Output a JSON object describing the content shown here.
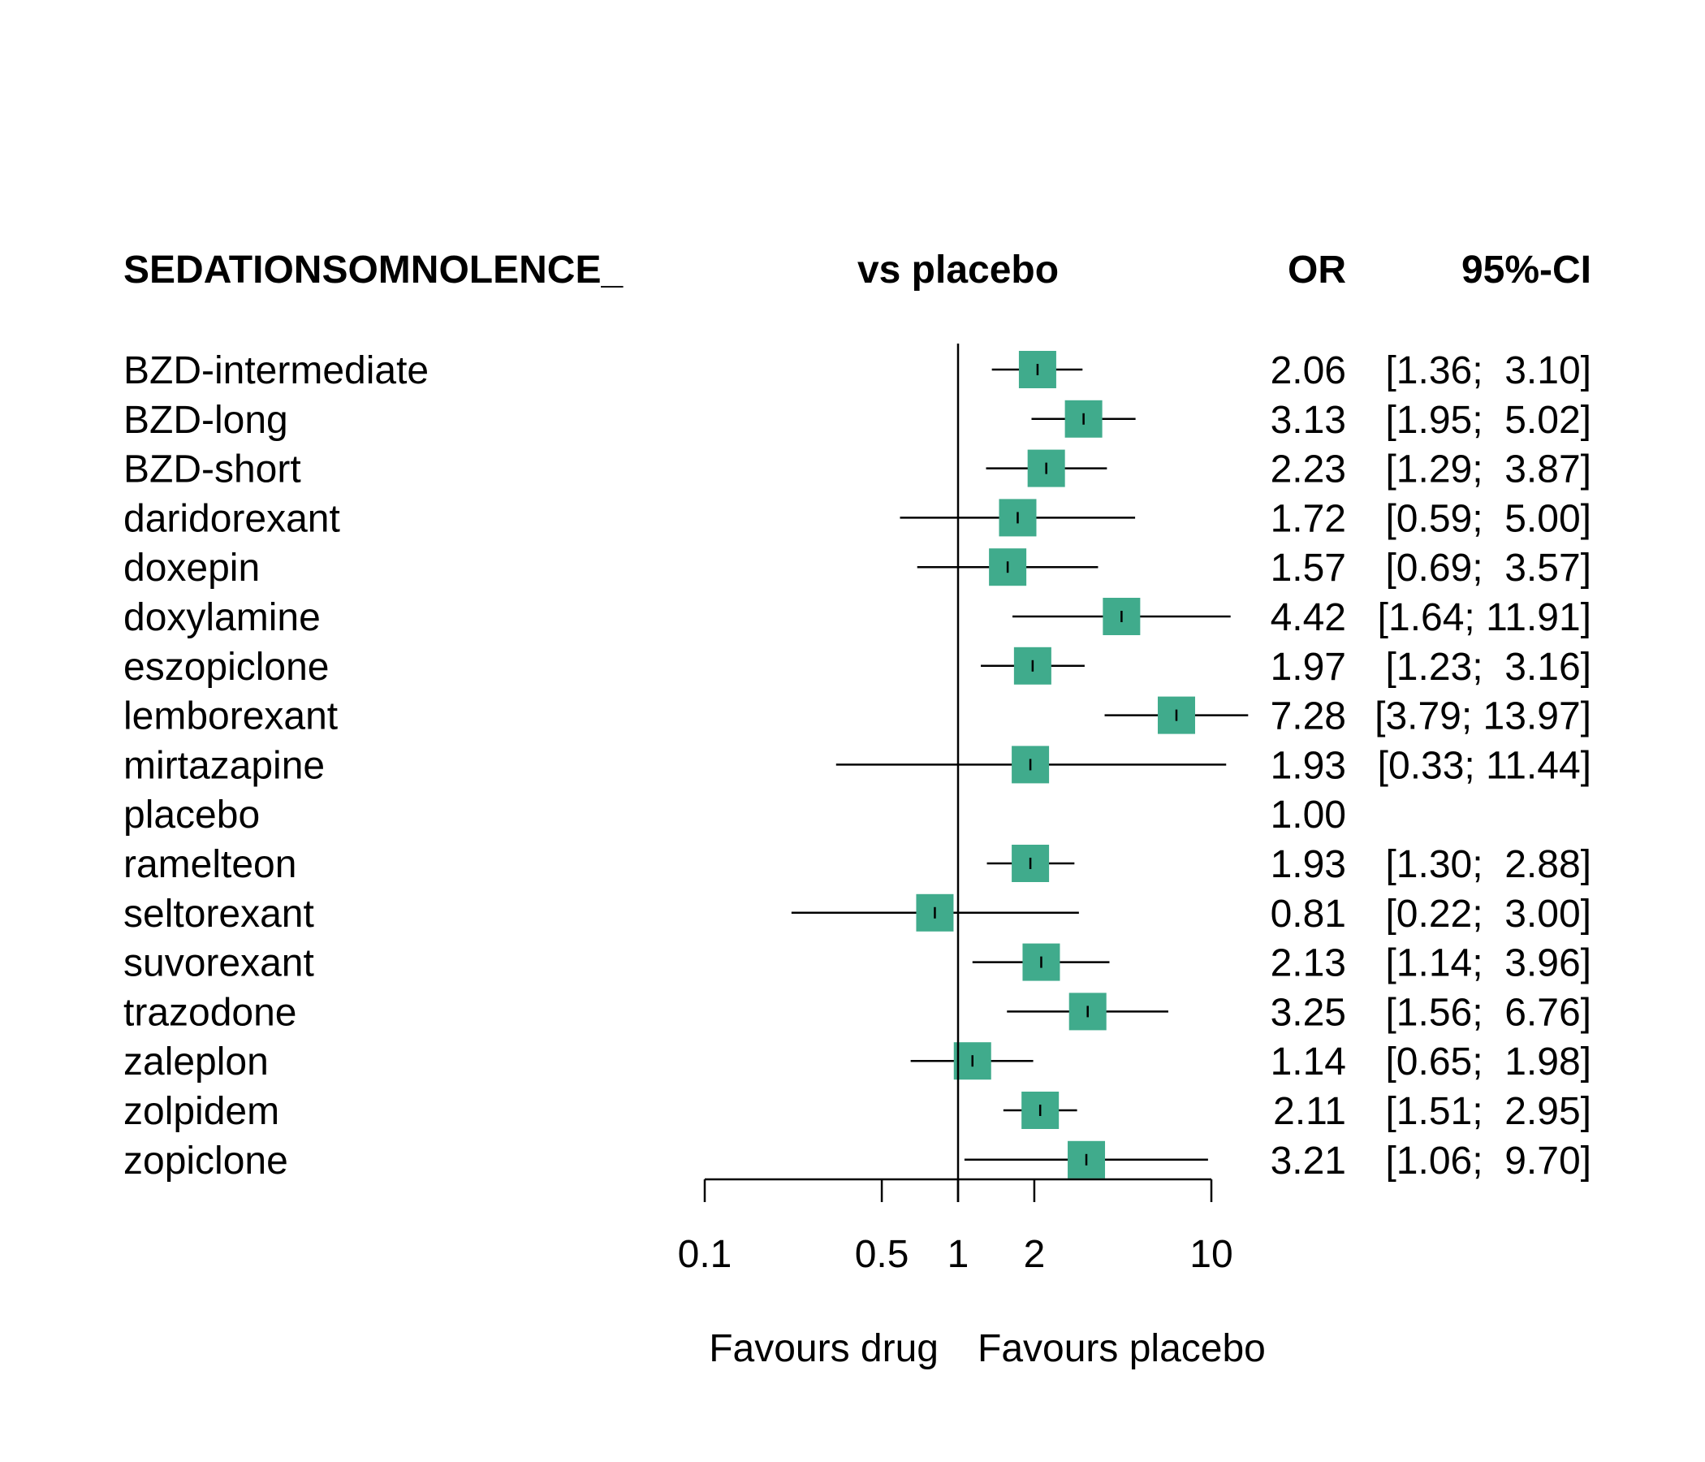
{
  "chart_data": {
    "type": "forest",
    "header": {
      "outcome": "SEDATIONSOMNOLENCE_",
      "comparison": "vs placebo",
      "estimate": "OR",
      "ci": "95%-CI"
    },
    "rows": [
      {
        "treatment": "BZD-intermediate",
        "or": 2.06,
        "lower": 1.36,
        "upper": 3.1,
        "or_text": "2.06",
        "ci_text": "[1.36;  3.10]"
      },
      {
        "treatment": "BZD-long",
        "or": 3.13,
        "lower": 1.95,
        "upper": 5.02,
        "or_text": "3.13",
        "ci_text": "[1.95;  5.02]"
      },
      {
        "treatment": "BZD-short",
        "or": 2.23,
        "lower": 1.29,
        "upper": 3.87,
        "or_text": "2.23",
        "ci_text": "[1.29;  3.87]"
      },
      {
        "treatment": "daridorexant",
        "or": 1.72,
        "lower": 0.59,
        "upper": 5.0,
        "or_text": "1.72",
        "ci_text": "[0.59;  5.00]"
      },
      {
        "treatment": "doxepin",
        "or": 1.57,
        "lower": 0.69,
        "upper": 3.57,
        "or_text": "1.57",
        "ci_text": "[0.69;  3.57]"
      },
      {
        "treatment": "doxylamine",
        "or": 4.42,
        "lower": 1.64,
        "upper": 11.91,
        "or_text": "4.42",
        "ci_text": "[1.64; 11.91]"
      },
      {
        "treatment": "eszopiclone",
        "or": 1.97,
        "lower": 1.23,
        "upper": 3.16,
        "or_text": "1.97",
        "ci_text": "[1.23;  3.16]"
      },
      {
        "treatment": "lemborexant",
        "or": 7.28,
        "lower": 3.79,
        "upper": 13.97,
        "or_text": "7.28",
        "ci_text": "[3.79; 13.97]"
      },
      {
        "treatment": "mirtazapine",
        "or": 1.93,
        "lower": 0.33,
        "upper": 11.44,
        "or_text": "1.93",
        "ci_text": "[0.33; 11.44]"
      },
      {
        "treatment": "placebo",
        "or": 1.0,
        "lower": null,
        "upper": null,
        "or_text": "1.00",
        "ci_text": ""
      },
      {
        "treatment": "ramelteon",
        "or": 1.93,
        "lower": 1.3,
        "upper": 2.88,
        "or_text": "1.93",
        "ci_text": "[1.30;  2.88]"
      },
      {
        "treatment": "seltorexant",
        "or": 0.81,
        "lower": 0.22,
        "upper": 3.0,
        "or_text": "0.81",
        "ci_text": "[0.22;  3.00]"
      },
      {
        "treatment": "suvorexant",
        "or": 2.13,
        "lower": 1.14,
        "upper": 3.96,
        "or_text": "2.13",
        "ci_text": "[1.14;  3.96]"
      },
      {
        "treatment": "trazodone",
        "or": 3.25,
        "lower": 1.56,
        "upper": 6.76,
        "or_text": "3.25",
        "ci_text": "[1.56;  6.76]"
      },
      {
        "treatment": "zaleplon",
        "or": 1.14,
        "lower": 0.65,
        "upper": 1.98,
        "or_text": "1.14",
        "ci_text": "[0.65;  1.98]"
      },
      {
        "treatment": "zolpidem",
        "or": 2.11,
        "lower": 1.51,
        "upper": 2.95,
        "or_text": "2.11",
        "ci_text": "[1.51;  2.95]"
      },
      {
        "treatment": "zopiclone",
        "or": 3.21,
        "lower": 1.06,
        "upper": 9.7,
        "or_text": "3.21",
        "ci_text": "[1.06;  9.70]"
      }
    ],
    "x_scale": "log",
    "xlim": [
      0.1,
      10
    ],
    "x_ticks": [
      0.1,
      0.5,
      1,
      2,
      10
    ],
    "x_tick_labels": [
      "0.1",
      "0.5",
      "1",
      "2",
      "10"
    ],
    "reference_line": 1,
    "label_left": "Favours drug",
    "label_right": "Favours placebo",
    "marker_color": "#40ab8c",
    "line_color": "#000000"
  }
}
